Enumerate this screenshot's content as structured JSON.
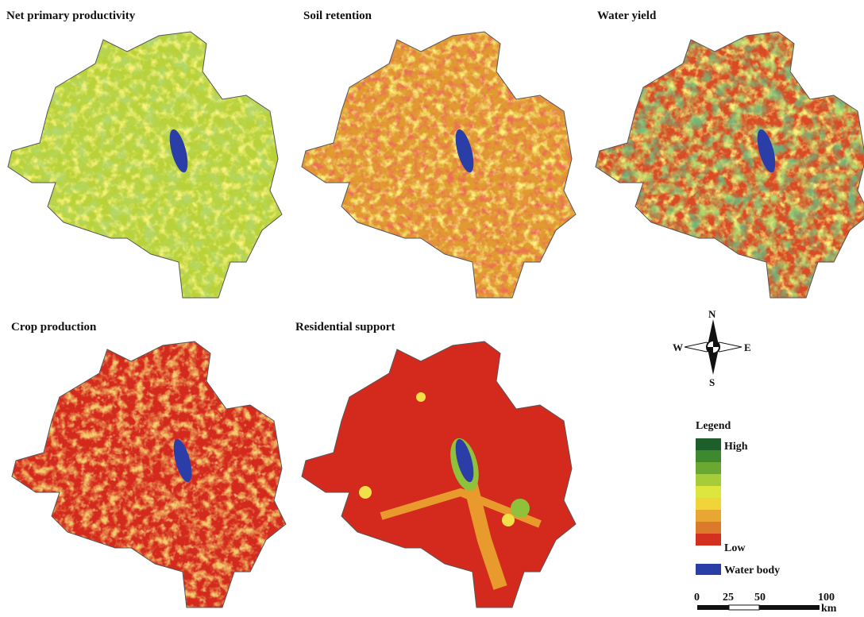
{
  "panels": [
    {
      "title": "Net primary productivity"
    },
    {
      "title": "Soil retention"
    },
    {
      "title": "Water  yield"
    },
    {
      "title": "Crop production"
    },
    {
      "title": "Residential support"
    }
  ],
  "compass": {
    "north": "N",
    "south": "S",
    "east": "E",
    "west": "W"
  },
  "legend": {
    "title": "Legend",
    "high": "High",
    "low": "Low",
    "water": "Water body"
  },
  "scale_bar": {
    "labels": [
      0,
      25,
      50,
      100
    ],
    "unit": "km"
  }
}
